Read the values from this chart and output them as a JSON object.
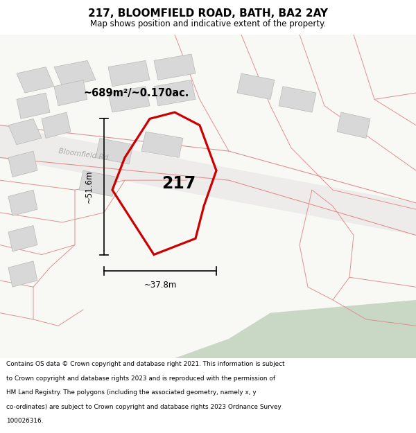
{
  "title": "217, BLOOMFIELD ROAD, BATH, BA2 2AY",
  "subtitle": "Map shows position and indicative extent of the property.",
  "footer_lines": [
    "Contains OS data © Crown copyright and database right 2021. This information is subject",
    "to Crown copyright and database rights 2023 and is reproduced with the permission of",
    "HM Land Registry. The polygons (including the associated geometry, namely x, y",
    "co-ordinates) are subject to Crown copyright and database rights 2023 Ordnance Survey",
    "100026316."
  ],
  "area_label": "~689m²/~0.170ac.",
  "property_number": "217",
  "dim_h": "~51.6m",
  "dim_w": "~37.8m",
  "road_label": "Bloomfield Rd",
  "subject_color": "#cc0000",
  "building_fc": "#d8d8d8",
  "building_ec": "#b8b8b8",
  "road_line_color": "#e09090",
  "map_bg": "#f8f8f5",
  "road_band_color": "#eeecea",
  "green_color": "#c8d8c5",
  "white": "#ffffff"
}
